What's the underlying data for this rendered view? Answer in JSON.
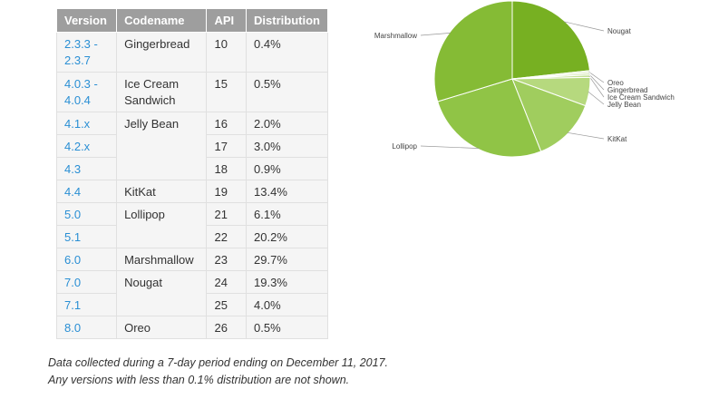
{
  "chart_data": [
    {
      "type": "table",
      "columns": [
        "Version",
        "Codename",
        "API",
        "Distribution"
      ],
      "rows": [
        {
          "versions": [
            "2.3.3 -\n2.3.7"
          ],
          "codename": "Gingerbread",
          "apis": [
            "10"
          ],
          "dists": [
            "0.4%"
          ]
        },
        {
          "versions": [
            "4.0.3 -\n4.0.4"
          ],
          "codename": "Ice Cream\nSandwich",
          "apis": [
            "15"
          ],
          "dists": [
            "0.5%"
          ]
        },
        {
          "versions": [
            "4.1.x",
            "4.2.x",
            "4.3"
          ],
          "codename": "Jelly Bean",
          "apis": [
            "16",
            "17",
            "18"
          ],
          "dists": [
            "2.0%",
            "3.0%",
            "0.9%"
          ]
        },
        {
          "versions": [
            "4.4"
          ],
          "codename": "KitKat",
          "apis": [
            "19"
          ],
          "dists": [
            "13.4%"
          ]
        },
        {
          "versions": [
            "5.0",
            "5.1"
          ],
          "codename": "Lollipop",
          "apis": [
            "21",
            "22"
          ],
          "dists": [
            "6.1%",
            "20.2%"
          ]
        },
        {
          "versions": [
            "6.0"
          ],
          "codename": "Marshmallow",
          "apis": [
            "23"
          ],
          "dists": [
            "29.7%"
          ]
        },
        {
          "versions": [
            "7.0",
            "7.1"
          ],
          "codename": "Nougat",
          "apis": [
            "24",
            "25"
          ],
          "dists": [
            "19.3%",
            "4.0%"
          ]
        },
        {
          "versions": [
            "8.0"
          ],
          "codename": "Oreo",
          "apis": [
            "26"
          ],
          "dists": [
            "0.5%"
          ]
        }
      ]
    },
    {
      "type": "pie",
      "slices": [
        {
          "name": "Nougat",
          "value": 23.3,
          "color": "#77b022"
        },
        {
          "name": "Oreo",
          "value": 0.5,
          "color": "#e8f2d8"
        },
        {
          "name": "Gingerbread",
          "value": 0.4,
          "color": "#cfe5a8"
        },
        {
          "name": "Ice Cream Sandwich",
          "value": 0.5,
          "color": "#c3df96"
        },
        {
          "name": "Jelly Bean",
          "value": 5.9,
          "color": "#b6d97e"
        },
        {
          "name": "KitKat",
          "value": 13.4,
          "color": "#a0cd5e"
        },
        {
          "name": "Lollipop",
          "value": 26.3,
          "color": "#90c446"
        },
        {
          "name": "Marshmallow",
          "value": 29.7,
          "color": "#85bb35"
        }
      ]
    }
  ],
  "notes": {
    "line1": "Data collected during a 7-day period ending on December 11, 2017.",
    "line2": "Any versions with less than 0.1% distribution are not shown."
  },
  "colors": {
    "header_bg": "#9e9e9e",
    "link": "#2a8fd4",
    "cell_bg": "#f5f5f5"
  }
}
